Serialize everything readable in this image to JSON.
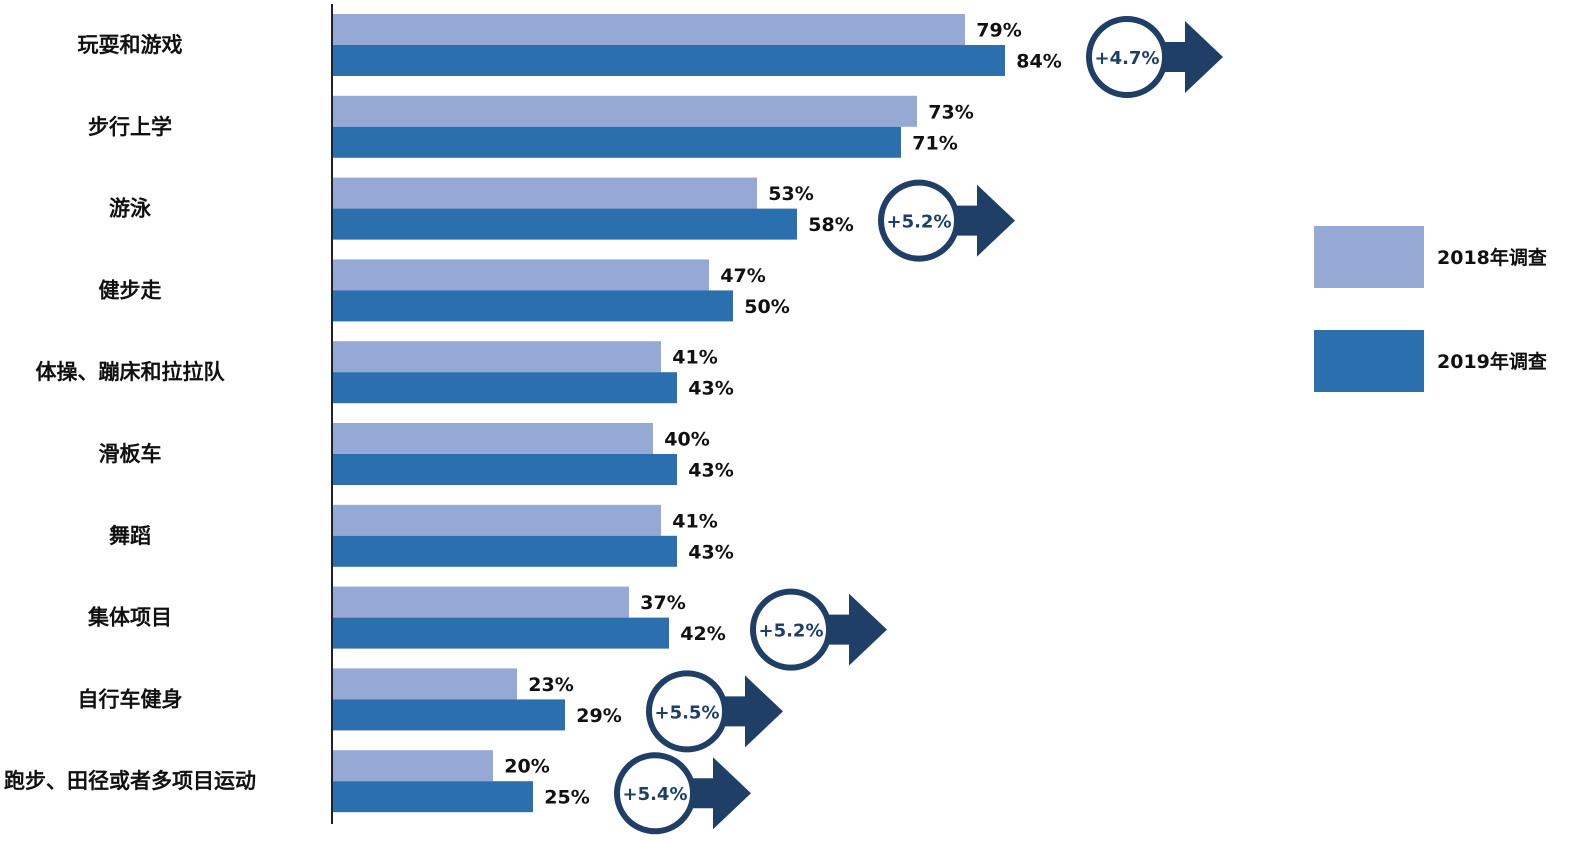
{
  "chart_data": {
    "type": "bar",
    "orientation": "horizontal",
    "categories": [
      "玩耍和游戏",
      "步行上学",
      "游泳",
      "健步走",
      "体操、蹦床和拉拉队",
      "滑板车",
      "舞蹈",
      "集体项目",
      "自行车健身",
      "跑步、田径或者多项目运动"
    ],
    "series": [
      {
        "name": "2018年调查",
        "color": "#95a9d4",
        "values": [
          79,
          73,
          53,
          47,
          41,
          40,
          41,
          37,
          23,
          20
        ],
        "labels": [
          "79%",
          "73%",
          "53%",
          "47%",
          "41%",
          "40%",
          "41%",
          "37%",
          "23%",
          "20%"
        ]
      },
      {
        "name": "2019年调查",
        "color": "#2c6fae",
        "values": [
          84,
          71,
          58,
          50,
          43,
          43,
          43,
          42,
          29,
          25
        ],
        "labels": [
          "84%",
          "71%",
          "58%",
          "50%",
          "43%",
          "43%",
          "43%",
          "42%",
          "29%",
          "25%"
        ]
      }
    ],
    "annotations": [
      {
        "category": "玩耍和游戏",
        "text": "+4.7%"
      },
      {
        "category": "游泳",
        "text": "+5.2%"
      },
      {
        "category": "集体项目",
        "text": "+5.2%"
      },
      {
        "category": "自行车健身",
        "text": "+5.5%"
      },
      {
        "category": "跑步、田径或者多项目运动",
        "text": "+5.4%"
      }
    ],
    "legend_position": "right",
    "annotation_color": "#1f3f66",
    "title": "",
    "xlabel": "",
    "ylabel": ""
  }
}
